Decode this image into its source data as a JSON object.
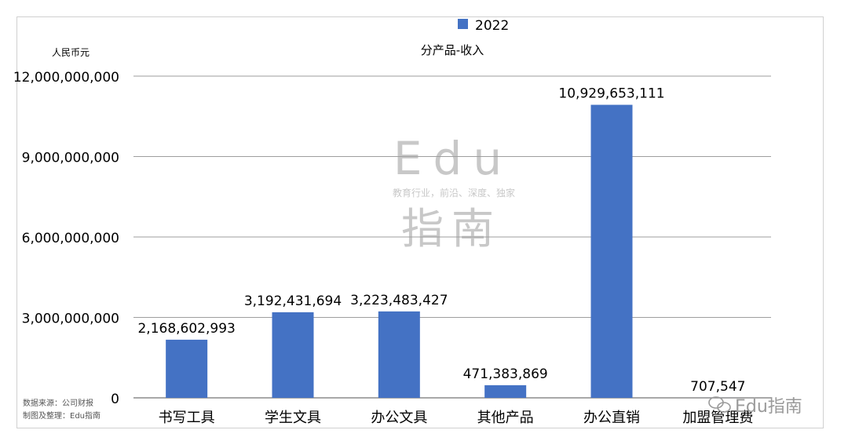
{
  "chart_data": {
    "type": "bar",
    "title": "分产品-收入",
    "ylabel": "人民币元",
    "xlabel": "",
    "categories": [
      "书写工具",
      "学生文具",
      "办公文具",
      "其他产品",
      "办公直销",
      "加盟管理费"
    ],
    "series": [
      {
        "name": "2022",
        "values": [
          2168602993,
          3192431694,
          3223483427,
          471383869,
          10929653111,
          707547
        ],
        "labels": [
          "2,168,602,993",
          "3,192,431,694",
          "3,223,483,427",
          "471,383,869",
          "10,929,653,111",
          "707,547"
        ]
      }
    ],
    "ylim": [
      0,
      12000000000
    ],
    "yticks": [
      {
        "value": 0,
        "label": "0"
      },
      {
        "value": 3000000000,
        "label": "3,000,000,000"
      },
      {
        "value": 6000000000,
        "label": "6,000,000,000"
      },
      {
        "value": 9000000000,
        "label": "9,000,000,000"
      },
      {
        "value": 12000000000,
        "label": "12,000,000,000"
      }
    ],
    "grid": true,
    "legend_position": "top-center",
    "bar_color": "#4472C4"
  },
  "source_note": [
    "数据来源：公司财报",
    "制图及整理：Edu指南"
  ],
  "watermark": {
    "title": "Edu",
    "tagline": "教育行业，前沿、深度、独家",
    "name": "指南"
  },
  "brand_badge": "Edu指南"
}
